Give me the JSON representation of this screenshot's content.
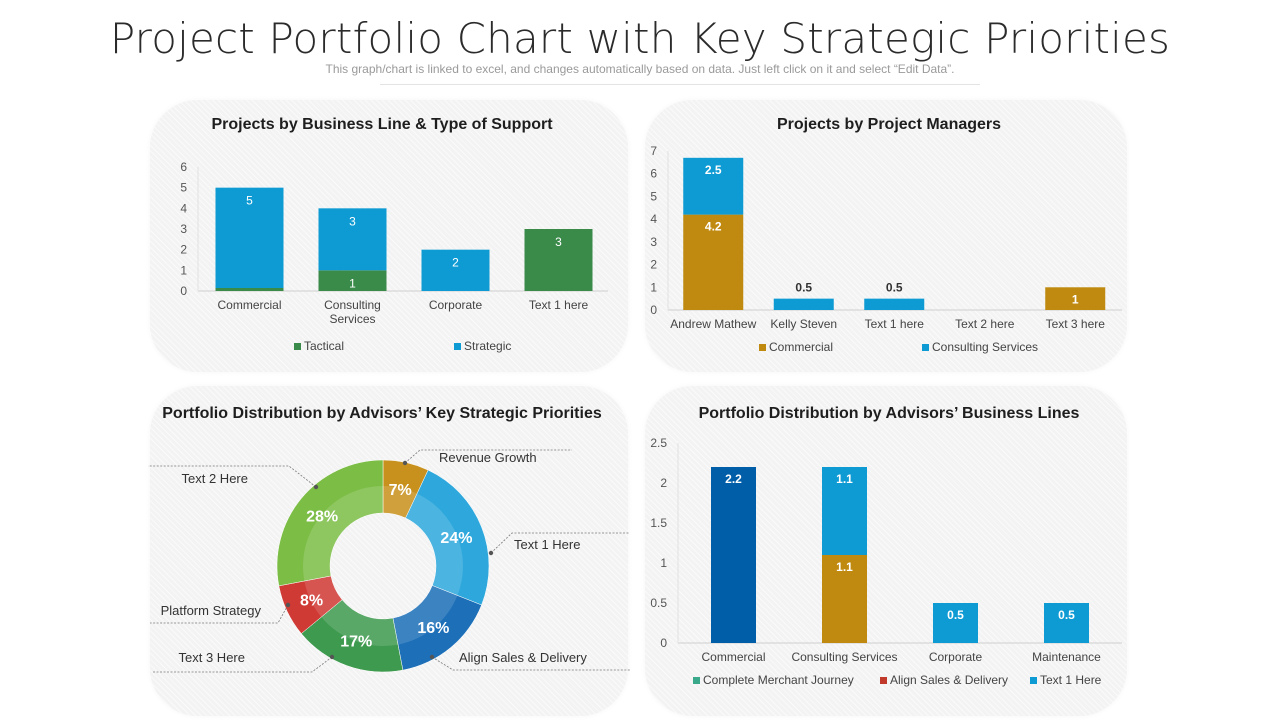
{
  "header": {
    "title": "Project Portfolio Chart with Key Strategic Priorities",
    "subtitle": "This graph/chart is linked to excel, and changes automatically based on data. Just left click on it and select “Edit Data”."
  },
  "chart_data": [
    {
      "type": "bar",
      "title": "Projects by Business Line & Type of Support",
      "categories": [
        "Commercial",
        "Consulting Services",
        "Corporate",
        "Text 1 here"
      ],
      "series": [
        {
          "name": "Tactical",
          "color": "#3a8a4a",
          "values": [
            0,
            1,
            0,
            3
          ],
          "labels": [
            "",
            "1",
            "",
            "3"
          ]
        },
        {
          "name": "Strategic",
          "color": "#0e9bd4",
          "values": [
            5,
            3,
            2,
            0
          ],
          "labels": [
            "5",
            "3",
            "2",
            ""
          ]
        }
      ],
      "ylim": [
        0,
        6
      ],
      "yticks": [
        "0",
        "1",
        "2",
        "3",
        "4",
        "5",
        "6"
      ],
      "stacked": true,
      "legend": "bottom"
    },
    {
      "type": "bar",
      "title": "Projects by Project Managers",
      "categories": [
        "Andrew Mathew",
        "Kelly Steven",
        "Text 1 here",
        "Text 2 here",
        "Text 3 here"
      ],
      "series": [
        {
          "name": "Commercial",
          "color": "#c08a10",
          "values": [
            4.2,
            0,
            0,
            0,
            1
          ],
          "labels": [
            "4.2",
            "",
            "",
            "",
            "1"
          ]
        },
        {
          "name": "Consulting Services",
          "color": "#0e9bd4",
          "values": [
            2.5,
            0.5,
            0.5,
            0,
            0
          ],
          "labels": [
            "2.5",
            "0.5",
            "0.5",
            "",
            ""
          ]
        }
      ],
      "ylim": [
        0,
        7
      ],
      "yticks": [
        "0",
        "1",
        "2",
        "3",
        "4",
        "5",
        "6",
        "7"
      ],
      "stacked": true,
      "legend": "bottom"
    },
    {
      "type": "pie",
      "title": "Portfolio Distribution by Advisors’ Key Strategic Priorities",
      "donut": true,
      "slices": [
        {
          "label": "Revenue  Growth",
          "value": 7,
          "display": "7%",
          "color": "#c8911d"
        },
        {
          "label": "Text 1 Here",
          "value": 24,
          "display": "24%",
          "color": "#2ea8dc"
        },
        {
          "label": "Align Sales & Delivery",
          "value": 16,
          "display": "16%",
          "color": "#1d6fb8"
        },
        {
          "label": "Text 3 Here",
          "value": 17,
          "display": "17%",
          "color": "#3e9a4e"
        },
        {
          "label": "Platform Strategy",
          "value": 8,
          "display": "8%",
          "color": "#d03a35"
        },
        {
          "label": "Text 2 Here",
          "value": 28,
          "display": "28%",
          "color": "#7cbd45"
        }
      ]
    },
    {
      "type": "bar",
      "title": "Portfolio Distribution by Advisors’ Business Lines",
      "categories": [
        "Commercial",
        "Consulting Services",
        "Corporate",
        "Maintenance"
      ],
      "series": [
        {
          "name": "Complete Merchant Journey",
          "color": "#3aa88a",
          "values": [
            0,
            0,
            0,
            0
          ],
          "labels": [
            "",
            "",
            "",
            ""
          ]
        },
        {
          "name": "Align Sales & Delivery",
          "color": "#c0392b",
          "values": [
            0,
            0,
            0,
            0
          ],
          "labels": [
            "",
            "",
            "",
            ""
          ]
        },
        {
          "name": "Text 1 Here",
          "color": "#0e9bd4",
          "values": [
            0,
            0,
            0,
            0
          ],
          "labels": [
            "",
            "",
            "",
            ""
          ]
        }
      ],
      "bars": [
        {
          "category": "Commercial",
          "segments": [
            {
              "value": 2.2,
              "label": "2.2",
              "color": "#005ea8"
            }
          ]
        },
        {
          "category": "Consulting Services",
          "segments": [
            {
              "value": 1.1,
              "label": "1.1",
              "color": "#c08a10"
            },
            {
              "value": 1.1,
              "label": "1.1",
              "color": "#0e9bd4"
            }
          ]
        },
        {
          "category": "Corporate",
          "segments": [
            {
              "value": 0.5,
              "label": "0.5",
              "color": "#0e9bd4"
            }
          ]
        },
        {
          "category": "Maintenance",
          "segments": [
            {
              "value": 0.5,
              "label": "0.5",
              "color": "#0e9bd4"
            }
          ]
        }
      ],
      "ylim": [
        0,
        2.5
      ],
      "yticks": [
        "0",
        "0.5",
        "1",
        "1.5",
        "2",
        "2.5"
      ],
      "stacked": true,
      "legend": "bottom"
    }
  ]
}
